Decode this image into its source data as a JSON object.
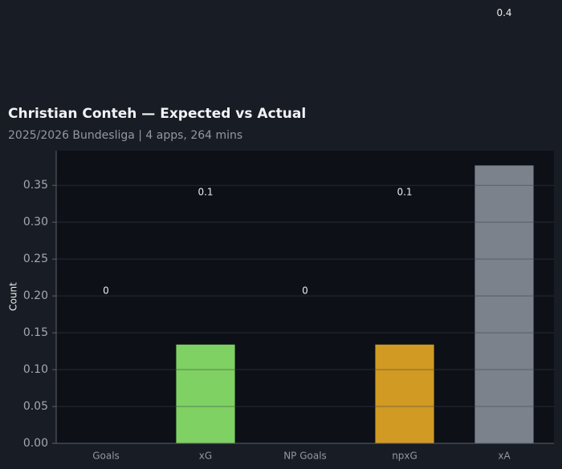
{
  "chart_data": {
    "type": "bar",
    "title": "Christian Conteh — Expected vs Actual",
    "subtitle": "2025/2026 Bundesliga | 4 apps, 264 mins",
    "y_label": "Count",
    "categories": [
      "Goals",
      "xG",
      "NP Goals",
      "npxG",
      "xA"
    ],
    "values": [
      0,
      0.134,
      0,
      0.134,
      0.377
    ],
    "value_labels": [
      "0",
      "0.1",
      "0",
      "0.1",
      "0.4"
    ],
    "colors": [
      "#7ed162",
      "#7ed162",
      "#d19a22",
      "#d19a22",
      "#7c828c"
    ],
    "ylim": [
      0,
      0.397
    ],
    "yticks": [
      {
        "value": 0,
        "label": "0.00"
      },
      0.05,
      {
        "value": 0.1,
        "label": "0.10"
      },
      0.15,
      {
        "value": 0.2,
        "label": "0.20"
      },
      0.25,
      {
        "value": 0.3,
        "label": "0.30"
      },
      0.35
    ],
    "grid": true
  }
}
